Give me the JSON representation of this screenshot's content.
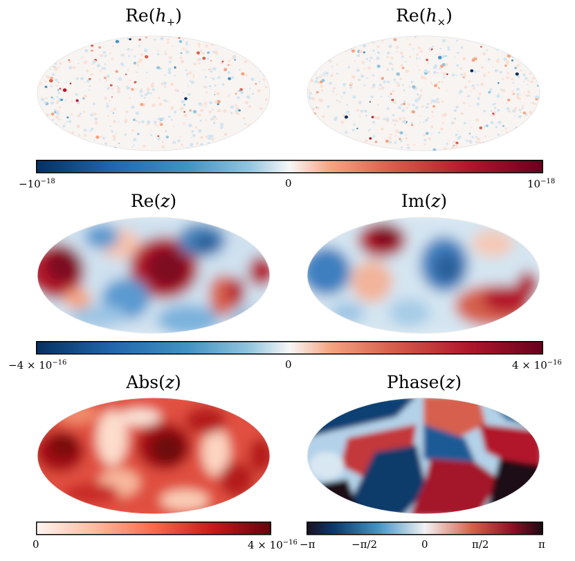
{
  "panels": {
    "re_hplus": {
      "title_fn": "Re(",
      "title_sym": "h",
      "title_sub": "+",
      "title_close": ")"
    },
    "re_hcross": {
      "title_fn": "Re(",
      "title_sym": "h",
      "title_sub": "×",
      "title_close": ")"
    },
    "re_z": {
      "title_fn": "Re(",
      "title_sym": "z",
      "title_close": ")"
    },
    "im_z": {
      "title_fn": "Im(",
      "title_sym": "z",
      "title_close": ")"
    },
    "abs_z": {
      "title_fn": "Abs(",
      "title_sym": "z",
      "title_close": ")"
    },
    "phase_z": {
      "title_fn": "Phase(",
      "title_sym": "z",
      "title_close": ")"
    }
  },
  "colorbars": {
    "strain": {
      "colormap": "RdBu_r",
      "min": "−10",
      "min_exp": "−18",
      "mid": "0",
      "max": "10",
      "max_exp": "−18"
    },
    "z": {
      "colormap": "RdBu_r",
      "min": "−4 × 10",
      "min_exp": "−16",
      "mid": "0",
      "max": "4 × 10",
      "max_exp": "−16"
    },
    "abs": {
      "colormap": "Reds",
      "min": "0",
      "max": "4 × 10",
      "max_exp": "−16"
    },
    "phase": {
      "colormap": "RdBu_r",
      "ticks": [
        "−π",
        "−π/2",
        "0",
        "π/2",
        "π"
      ]
    }
  },
  "colors": {
    "deep_blue": "#0b3c6e",
    "mid_blue": "#4a8cc4",
    "light_blue": "#c4dcee",
    "white": "#f7f7f7",
    "light_red": "#f6bca3",
    "mid_red": "#d6604d",
    "deep_red": "#67001f",
    "dark_end": "#1a0a12"
  }
}
